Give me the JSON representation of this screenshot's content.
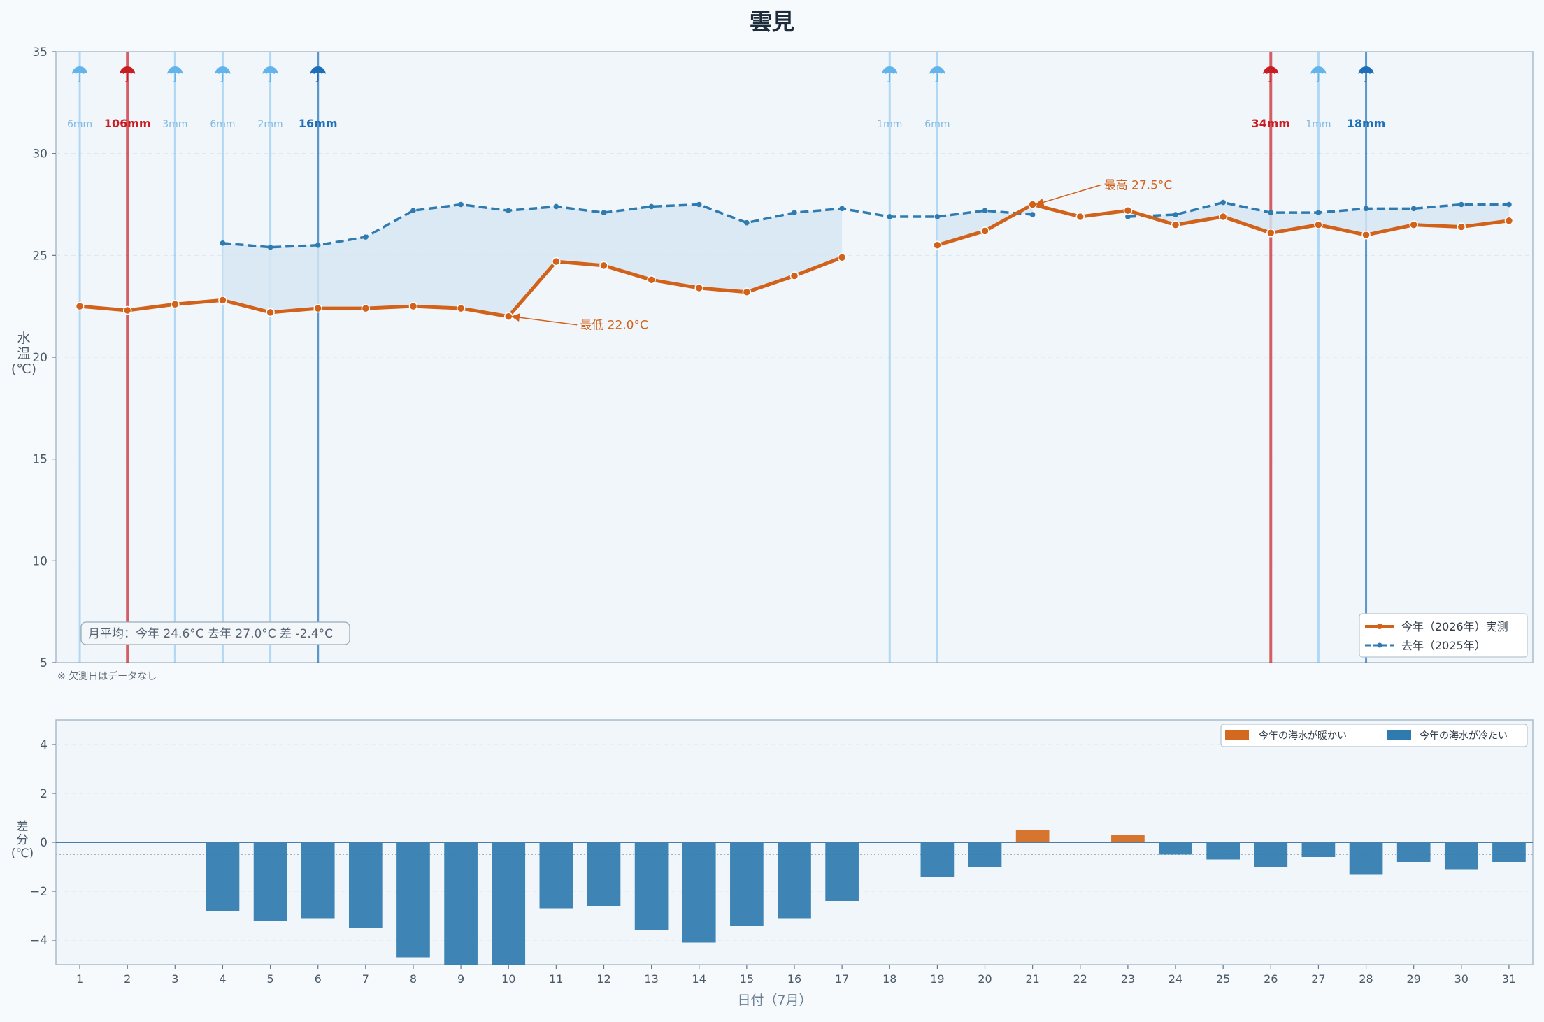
{
  "chart_data": [
    {
      "type": "line",
      "title": "雲見",
      "ylabel": "水温(℃)",
      "xlabel": "",
      "ylim": [
        5,
        35
      ],
      "yticks": [
        5,
        10,
        15,
        20,
        25,
        30,
        35
      ],
      "xlim": [
        0.5,
        31.5
      ],
      "grid": true,
      "legend_position": "bottom-right",
      "series": [
        {
          "name": "今年（2026年）実測",
          "color": "#d2611a",
          "x": [
            1,
            2,
            3,
            4,
            5,
            6,
            7,
            8,
            9,
            10,
            11,
            12,
            13,
            14,
            15,
            16,
            17,
            19,
            20,
            21,
            22,
            23,
            24,
            25,
            26,
            27,
            28,
            29,
            30,
            31
          ],
          "values": [
            22.5,
            22.3,
            22.6,
            22.8,
            22.2,
            22.4,
            22.4,
            22.5,
            22.4,
            22.0,
            24.7,
            24.5,
            23.8,
            23.4,
            23.2,
            24.0,
            24.9,
            25.5,
            26.2,
            27.5,
            26.9,
            27.2,
            26.5,
            26.9,
            26.1,
            26.5,
            26.0,
            26.5,
            26.4,
            26.7
          ]
        },
        {
          "name": "去年（2025年）",
          "color": "#2f7bb0",
          "x": [
            4,
            5,
            6,
            7,
            8,
            9,
            10,
            11,
            12,
            13,
            14,
            15,
            16,
            17,
            18,
            19,
            20,
            21,
            23,
            24,
            25,
            26,
            27,
            28,
            29,
            30,
            31
          ],
          "values": [
            25.6,
            25.4,
            25.5,
            25.9,
            27.2,
            27.5,
            27.2,
            27.4,
            27.1,
            27.4,
            27.5,
            26.6,
            27.1,
            27.3,
            26.9,
            26.9,
            27.2,
            27.0,
            26.9,
            27.0,
            27.6,
            27.1,
            27.1,
            27.3,
            27.3,
            27.5,
            27.5
          ]
        }
      ],
      "rain": [
        {
          "day": 1,
          "label": "6mm",
          "level": "light"
        },
        {
          "day": 2,
          "label": "106mm",
          "level": "heavy"
        },
        {
          "day": 3,
          "label": "3mm",
          "level": "light"
        },
        {
          "day": 4,
          "label": "6mm",
          "level": "light"
        },
        {
          "day": 5,
          "label": "2mm",
          "level": "light"
        },
        {
          "day": 6,
          "label": "16mm",
          "level": "moderate"
        },
        {
          "day": 18,
          "label": "1mm",
          "level": "light"
        },
        {
          "day": 19,
          "label": "6mm",
          "level": "light"
        },
        {
          "day": 26,
          "label": "34mm",
          "level": "heavy"
        },
        {
          "day": 27,
          "label": "1mm",
          "level": "light"
        },
        {
          "day": 28,
          "label": "18mm",
          "level": "moderate"
        }
      ],
      "annotations": [
        {
          "text": "最低 22.0°C",
          "x": 10,
          "y": 22.0
        },
        {
          "text": "最高 27.5°C",
          "x": 21,
          "y": 27.5
        }
      ],
      "summary_box": "月平均：今年 24.6°C  去年 27.0°C  差 -2.4°C",
      "footnote": "※ 欠測日はデータなし",
      "colors": {
        "rain_light": "#64b4ec",
        "rain_moderate": "#1e6fb8",
        "rain_heavy": "#c81e23",
        "fill": "#d6e6f2"
      }
    },
    {
      "type": "bar",
      "ylabel": "差分(℃)",
      "xlabel": "日付（7月）",
      "ylim": [
        -5,
        5
      ],
      "yticks": [
        -4,
        -2,
        0,
        2,
        4
      ],
      "x": [
        4,
        5,
        6,
        7,
        8,
        9,
        10,
        11,
        12,
        13,
        14,
        15,
        16,
        17,
        19,
        20,
        21,
        23,
        24,
        25,
        26,
        27,
        28,
        29,
        30,
        31
      ],
      "values": [
        -2.8,
        -3.2,
        -3.1,
        -3.5,
        -4.7,
        -5.1,
        -5.2,
        -2.7,
        -2.6,
        -3.6,
        -4.1,
        -3.4,
        -3.1,
        -2.4,
        -1.4,
        -1.0,
        0.5,
        0.3,
        -0.5,
        -0.7,
        -1.0,
        -0.6,
        -1.3,
        -0.8,
        -1.1,
        -0.8
      ],
      "xticks": [
        1,
        2,
        3,
        4,
        5,
        6,
        7,
        8,
        9,
        10,
        11,
        12,
        13,
        14,
        15,
        16,
        17,
        18,
        19,
        20,
        21,
        22,
        23,
        24,
        25,
        26,
        27,
        28,
        29,
        30,
        31
      ],
      "legend": [
        {
          "name": "今年の海水が暖かい",
          "color": "#d2691e"
        },
        {
          "name": "今年の海水が冷たい",
          "color": "#2f7bb0"
        }
      ],
      "legend_position": "top-right"
    }
  ]
}
